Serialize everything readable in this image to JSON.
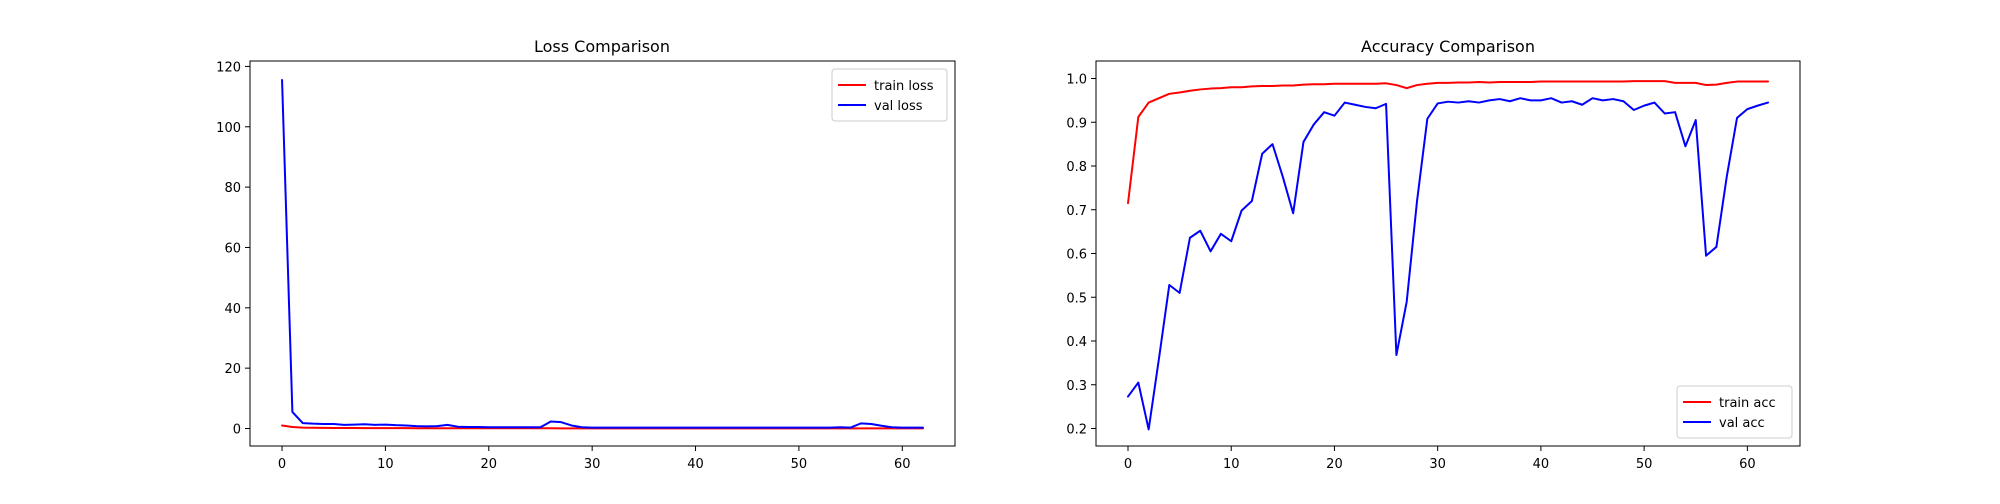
{
  "chart_data": [
    {
      "type": "line",
      "title": "Loss Comparison",
      "xlabel": "",
      "ylabel": "",
      "xlim": [
        -3.1,
        65.1
      ],
      "ylim": [
        -5.8,
        121.8
      ],
      "xticks": [
        0,
        10,
        20,
        30,
        40,
        50,
        60
      ],
      "yticks": [
        0,
        20,
        40,
        60,
        80,
        100,
        120
      ],
      "legend_position": "top-right",
      "series": [
        {
          "name": "train loss",
          "color": "#ff0000",
          "values": [
            1.0,
            0.5,
            0.3,
            0.25,
            0.2,
            0.18,
            0.16,
            0.15,
            0.14,
            0.13,
            0.12,
            0.12,
            0.11,
            0.1,
            0.1,
            0.09,
            0.09,
            0.09,
            0.08,
            0.08,
            0.08,
            0.07,
            0.07,
            0.07,
            0.07,
            0.07,
            0.07,
            0.06,
            0.06,
            0.06,
            0.05,
            0.05,
            0.05,
            0.05,
            0.05,
            0.05,
            0.05,
            0.05,
            0.04,
            0.04,
            0.04,
            0.04,
            0.04,
            0.04,
            0.04,
            0.04,
            0.04,
            0.04,
            0.04,
            0.04,
            0.04,
            0.04,
            0.04,
            0.04,
            0.04,
            0.04,
            0.04,
            0.04,
            0.04,
            0.04,
            0.04,
            0.04,
            0.04
          ]
        },
        {
          "name": "val loss",
          "color": "#0000ff",
          "values": [
            115.5,
            5.5,
            1.8,
            1.6,
            1.5,
            1.5,
            1.2,
            1.3,
            1.4,
            1.2,
            1.3,
            1.1,
            1.0,
            0.8,
            0.7,
            0.8,
            1.2,
            0.6,
            0.5,
            0.5,
            0.4,
            0.4,
            0.4,
            0.4,
            0.4,
            0.4,
            2.3,
            2.1,
            1.0,
            0.4,
            0.3,
            0.3,
            0.3,
            0.3,
            0.3,
            0.3,
            0.3,
            0.3,
            0.3,
            0.3,
            0.3,
            0.3,
            0.3,
            0.3,
            0.3,
            0.3,
            0.3,
            0.3,
            0.3,
            0.3,
            0.3,
            0.3,
            0.3,
            0.3,
            0.4,
            0.3,
            1.7,
            1.5,
            0.9,
            0.4,
            0.3,
            0.3,
            0.3
          ]
        }
      ]
    },
    {
      "type": "line",
      "title": "Accuracy Comparison",
      "xlabel": "",
      "ylabel": "",
      "xlim": [
        -3.1,
        65.1
      ],
      "ylim": [
        0.16,
        1.04
      ],
      "xticks": [
        0,
        10,
        20,
        30,
        40,
        50,
        60
      ],
      "yticks": [
        0.2,
        0.3,
        0.4,
        0.5,
        0.6,
        0.7,
        0.8,
        0.9,
        1.0
      ],
      "legend_position": "bottom-right",
      "series": [
        {
          "name": "train acc",
          "color": "#ff0000",
          "values": [
            0.715,
            0.912,
            0.945,
            0.955,
            0.965,
            0.968,
            0.972,
            0.975,
            0.977,
            0.978,
            0.98,
            0.98,
            0.982,
            0.983,
            0.983,
            0.984,
            0.984,
            0.986,
            0.987,
            0.987,
            0.988,
            0.988,
            0.988,
            0.988,
            0.988,
            0.989,
            0.985,
            0.978,
            0.985,
            0.988,
            0.99,
            0.99,
            0.991,
            0.991,
            0.992,
            0.991,
            0.992,
            0.992,
            0.992,
            0.992,
            0.993,
            0.993,
            0.993,
            0.993,
            0.993,
            0.993,
            0.993,
            0.993,
            0.993,
            0.994,
            0.994,
            0.994,
            0.994,
            0.99,
            0.99,
            0.99,
            0.985,
            0.986,
            0.99,
            0.993,
            0.993,
            0.993,
            0.993
          ]
        },
        {
          "name": "val acc",
          "color": "#0000ff",
          "values": [
            0.273,
            0.305,
            0.198,
            0.36,
            0.528,
            0.51,
            0.636,
            0.652,
            0.605,
            0.645,
            0.628,
            0.698,
            0.72,
            0.828,
            0.85,
            0.775,
            0.692,
            0.855,
            0.895,
            0.923,
            0.915,
            0.945,
            0.94,
            0.935,
            0.932,
            0.942,
            0.368,
            0.49,
            0.72,
            0.908,
            0.943,
            0.947,
            0.945,
            0.948,
            0.945,
            0.95,
            0.953,
            0.948,
            0.955,
            0.95,
            0.95,
            0.955,
            0.945,
            0.948,
            0.94,
            0.955,
            0.95,
            0.953,
            0.948,
            0.928,
            0.938,
            0.945,
            0.92,
            0.923,
            0.845,
            0.905,
            0.595,
            0.615,
            0.775,
            0.91,
            0.93,
            0.938,
            0.945
          ]
        }
      ]
    }
  ]
}
